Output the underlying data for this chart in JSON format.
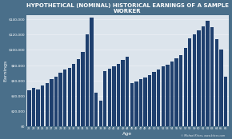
{
  "title": "HYPOTHETICAL (NOMINAL) HISTORICAL EARNINGS OF A SAMPLE WORKER",
  "xlabel": "Age",
  "ylabel": "Earnings",
  "bar_color": "#1e3f6e",
  "plot_bg": "#dce4ec",
  "outer_bg": "#4a6f8a",
  "ages": [
    22,
    23,
    24,
    25,
    26,
    27,
    28,
    29,
    30,
    31,
    32,
    33,
    34,
    35,
    36,
    37,
    38,
    39,
    40,
    41,
    42,
    43,
    44,
    45,
    46,
    47,
    48,
    49,
    50,
    51,
    52,
    53,
    54,
    55,
    56,
    57,
    58,
    59,
    60,
    61,
    62,
    63,
    64,
    65,
    66
  ],
  "earnings": [
    47000,
    50000,
    48000,
    53000,
    57000,
    62000,
    65000,
    70000,
    74000,
    76000,
    82000,
    88000,
    97000,
    120000,
    142000,
    44000,
    34000,
    72000,
    75000,
    78000,
    82000,
    87000,
    91000,
    56000,
    59000,
    62000,
    64000,
    67000,
    71000,
    74000,
    78000,
    81000,
    85000,
    89000,
    93000,
    102000,
    115000,
    120000,
    126000,
    131000,
    138000,
    130000,
    114000,
    100000,
    65000
  ],
  "ylim": [
    0,
    145000
  ],
  "yticks": [
    0,
    20000,
    40000,
    60000,
    80000,
    100000,
    120000,
    140000
  ],
  "ytick_labels": [
    "$0",
    "$20,000",
    "$40,000",
    "$60,000",
    "$80,000",
    "$100,000",
    "$120,000",
    "$140,000"
  ],
  "watermark": "© Michael Kitces, www.kitces.com",
  "title_color": "white",
  "axis_label_color": "white",
  "tick_label_color": "white",
  "grid_color": "white",
  "title_fontsize": 5.0,
  "bar_width": 0.78
}
